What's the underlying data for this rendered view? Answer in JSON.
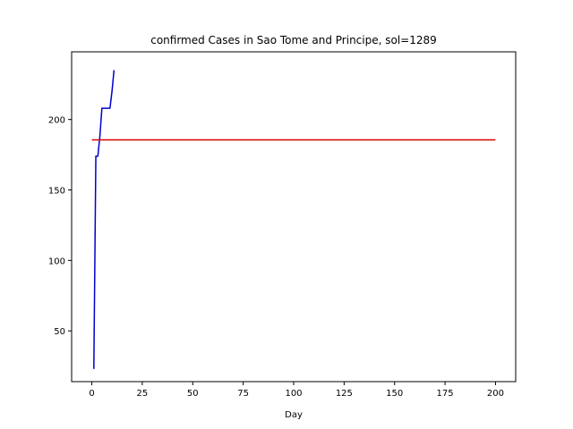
{
  "chart_data": {
    "type": "line",
    "title": "confirmed Cases in Sao Tome and Principe, sol=1289",
    "xlabel": "Day",
    "ylabel": "",
    "xlim": [
      -10,
      210
    ],
    "ylim": [
      14,
      248
    ],
    "xticks": [
      0,
      25,
      50,
      75,
      100,
      125,
      150,
      175,
      200
    ],
    "yticks": [
      50,
      100,
      150,
      200
    ],
    "grid": false,
    "series": [
      {
        "color": "#0000cc",
        "x": [
          1,
          2,
          3,
          4,
          5,
          6,
          7,
          8,
          9,
          10,
          11
        ],
        "y": [
          23,
          174,
          174,
          188,
          208,
          208,
          208,
          208,
          208,
          220,
          235
        ]
      },
      {
        "color": "#dd0000",
        "x": [
          0,
          200
        ],
        "y": [
          185.5,
          185.5
        ]
      }
    ]
  }
}
